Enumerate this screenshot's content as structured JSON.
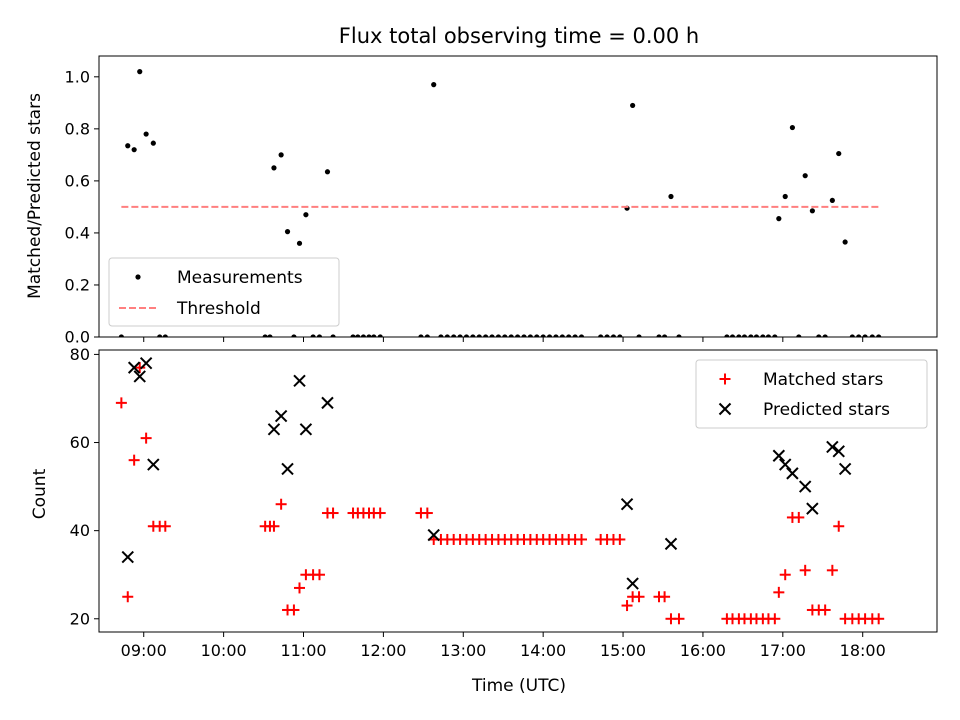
{
  "chart_data": [
    {
      "type": "scatter",
      "title": "Flux total observing time = 0.00 h",
      "ylabel": "Matched/Predicted stars",
      "xlabel": "",
      "xlim": [
        8.44,
        18.93
      ],
      "ylim": [
        0.0,
        1.08
      ],
      "yticks": [
        0.0,
        0.2,
        0.4,
        0.6,
        0.8,
        1.0
      ],
      "ytick_labels": [
        "0.0",
        "0.2",
        "0.4",
        "0.6",
        "0.8",
        "1.0"
      ],
      "legend": "lower-left",
      "series": [
        {
          "name": "Measurements",
          "style": "dot",
          "color": "#000000",
          "points": [
            [
              8.72,
              0.0
            ],
            [
              8.8,
              0.735
            ],
            [
              8.88,
              0.72
            ],
            [
              8.95,
              1.02
            ],
            [
              9.03,
              0.78
            ],
            [
              9.12,
              0.745
            ],
            [
              9.2,
              0.0
            ],
            [
              9.27,
              0.0
            ],
            [
              10.52,
              0.0
            ],
            [
              10.58,
              0.0
            ],
            [
              10.63,
              0.65
            ],
            [
              10.72,
              0.7
            ],
            [
              10.8,
              0.405
            ],
            [
              10.88,
              0.0
            ],
            [
              10.95,
              0.36
            ],
            [
              11.03,
              0.47
            ],
            [
              11.12,
              0.0
            ],
            [
              11.2,
              0.0
            ],
            [
              11.3,
              0.635
            ],
            [
              11.37,
              0.0
            ],
            [
              11.62,
              0.0
            ],
            [
              11.68,
              0.0
            ],
            [
              11.75,
              0.0
            ],
            [
              11.82,
              0.0
            ],
            [
              11.88,
              0.0
            ],
            [
              11.96,
              0.0
            ],
            [
              12.47,
              0.0
            ],
            [
              12.55,
              0.0
            ],
            [
              12.63,
              0.97
            ],
            [
              12.72,
              0.0
            ],
            [
              12.8,
              0.0
            ],
            [
              12.88,
              0.0
            ],
            [
              12.96,
              0.0
            ],
            [
              13.04,
              0.0
            ],
            [
              13.12,
              0.0
            ],
            [
              13.2,
              0.0
            ],
            [
              13.28,
              0.0
            ],
            [
              13.36,
              0.0
            ],
            [
              13.44,
              0.0
            ],
            [
              13.52,
              0.0
            ],
            [
              13.6,
              0.0
            ],
            [
              13.68,
              0.0
            ],
            [
              13.76,
              0.0
            ],
            [
              13.84,
              0.0
            ],
            [
              13.92,
              0.0
            ],
            [
              14.0,
              0.0
            ],
            [
              14.08,
              0.0
            ],
            [
              14.16,
              0.0
            ],
            [
              14.24,
              0.0
            ],
            [
              14.32,
              0.0
            ],
            [
              14.4,
              0.0
            ],
            [
              14.48,
              0.0
            ],
            [
              14.72,
              0.0
            ],
            [
              14.8,
              0.0
            ],
            [
              14.88,
              0.0
            ],
            [
              14.96,
              0.0
            ],
            [
              15.05,
              0.495
            ],
            [
              15.12,
              0.89
            ],
            [
              15.2,
              0.0
            ],
            [
              15.45,
              0.0
            ],
            [
              15.52,
              0.0
            ],
            [
              15.6,
              0.54
            ],
            [
              15.7,
              0.0
            ],
            [
              16.3,
              0.0
            ],
            [
              16.37,
              0.0
            ],
            [
              16.45,
              0.0
            ],
            [
              16.52,
              0.0
            ],
            [
              16.6,
              0.0
            ],
            [
              16.67,
              0.0
            ],
            [
              16.75,
              0.0
            ],
            [
              16.82,
              0.0
            ],
            [
              16.9,
              0.0
            ],
            [
              16.95,
              0.455
            ],
            [
              17.03,
              0.54
            ],
            [
              17.12,
              0.805
            ],
            [
              17.2,
              0.0
            ],
            [
              17.28,
              0.62
            ],
            [
              17.37,
              0.485
            ],
            [
              17.45,
              0.0
            ],
            [
              17.53,
              0.0
            ],
            [
              17.62,
              0.525
            ],
            [
              17.7,
              0.705
            ],
            [
              17.78,
              0.365
            ],
            [
              17.87,
              0.0
            ],
            [
              17.95,
              0.0
            ],
            [
              18.03,
              0.0
            ],
            [
              18.12,
              0.0
            ],
            [
              18.2,
              0.0
            ]
          ]
        },
        {
          "name": "Threshold",
          "style": "dashed-line",
          "color": "#ff7f7f",
          "points": [
            [
              8.72,
              0.5
            ],
            [
              18.2,
              0.5
            ]
          ]
        }
      ]
    },
    {
      "type": "scatter",
      "title": "",
      "ylabel": "Count",
      "xlabel": "Time (UTC)",
      "xlim": [
        8.44,
        18.93
      ],
      "ylim": [
        17,
        81
      ],
      "yticks": [
        20,
        40,
        60,
        80
      ],
      "ytick_labels": [
        "20",
        "40",
        "60",
        "80"
      ],
      "xticks": [
        9,
        10,
        11,
        12,
        13,
        14,
        15,
        16,
        17,
        18
      ],
      "xtick_labels": [
        "09:00",
        "10:00",
        "11:00",
        "12:00",
        "13:00",
        "14:00",
        "15:00",
        "16:00",
        "17:00",
        "18:00"
      ],
      "legend": "top-right",
      "series": [
        {
          "name": "Matched stars",
          "style": "plus",
          "color": "#ff0000",
          "points": [
            [
              8.72,
              69
            ],
            [
              8.8,
              25
            ],
            [
              8.88,
              56
            ],
            [
              8.95,
              77
            ],
            [
              9.03,
              61
            ],
            [
              9.12,
              41
            ],
            [
              9.2,
              41
            ],
            [
              9.27,
              41
            ],
            [
              10.52,
              41
            ],
            [
              10.58,
              41
            ],
            [
              10.63,
              41
            ],
            [
              10.72,
              46
            ],
            [
              10.8,
              22
            ],
            [
              10.88,
              22
            ],
            [
              10.95,
              27
            ],
            [
              11.03,
              30
            ],
            [
              11.12,
              30
            ],
            [
              11.2,
              30
            ],
            [
              11.3,
              44
            ],
            [
              11.37,
              44
            ],
            [
              11.62,
              44
            ],
            [
              11.68,
              44
            ],
            [
              11.75,
              44
            ],
            [
              11.82,
              44
            ],
            [
              11.88,
              44
            ],
            [
              11.96,
              44
            ],
            [
              12.47,
              44
            ],
            [
              12.55,
              44
            ],
            [
              12.63,
              38
            ],
            [
              12.72,
              38
            ],
            [
              12.8,
              38
            ],
            [
              12.88,
              38
            ],
            [
              12.96,
              38
            ],
            [
              13.04,
              38
            ],
            [
              13.12,
              38
            ],
            [
              13.2,
              38
            ],
            [
              13.28,
              38
            ],
            [
              13.36,
              38
            ],
            [
              13.44,
              38
            ],
            [
              13.52,
              38
            ],
            [
              13.6,
              38
            ],
            [
              13.68,
              38
            ],
            [
              13.76,
              38
            ],
            [
              13.84,
              38
            ],
            [
              13.92,
              38
            ],
            [
              14.0,
              38
            ],
            [
              14.08,
              38
            ],
            [
              14.16,
              38
            ],
            [
              14.24,
              38
            ],
            [
              14.32,
              38
            ],
            [
              14.4,
              38
            ],
            [
              14.48,
              38
            ],
            [
              14.72,
              38
            ],
            [
              14.8,
              38
            ],
            [
              14.88,
              38
            ],
            [
              14.96,
              38
            ],
            [
              15.05,
              23
            ],
            [
              15.12,
              25
            ],
            [
              15.2,
              25
            ],
            [
              15.45,
              25
            ],
            [
              15.52,
              25
            ],
            [
              15.6,
              20
            ],
            [
              15.7,
              20
            ],
            [
              16.3,
              20
            ],
            [
              16.37,
              20
            ],
            [
              16.45,
              20
            ],
            [
              16.52,
              20
            ],
            [
              16.6,
              20
            ],
            [
              16.67,
              20
            ],
            [
              16.75,
              20
            ],
            [
              16.82,
              20
            ],
            [
              16.9,
              20
            ],
            [
              16.95,
              26
            ],
            [
              17.03,
              30
            ],
            [
              17.12,
              43
            ],
            [
              17.2,
              43
            ],
            [
              17.28,
              31
            ],
            [
              17.37,
              22
            ],
            [
              17.45,
              22
            ],
            [
              17.53,
              22
            ],
            [
              17.62,
              31
            ],
            [
              17.7,
              41
            ],
            [
              17.78,
              20
            ],
            [
              17.87,
              20
            ],
            [
              17.95,
              20
            ],
            [
              18.03,
              20
            ],
            [
              18.12,
              20
            ],
            [
              18.2,
              20
            ]
          ]
        },
        {
          "name": "Predicted stars",
          "style": "x",
          "color": "#000000",
          "points": [
            [
              8.8,
              34
            ],
            [
              8.88,
              77
            ],
            [
              8.95,
              75
            ],
            [
              9.03,
              78
            ],
            [
              9.12,
              55
            ],
            [
              10.63,
              63
            ],
            [
              10.72,
              66
            ],
            [
              10.8,
              54
            ],
            [
              10.95,
              74
            ],
            [
              11.03,
              63
            ],
            [
              11.3,
              69
            ],
            [
              12.63,
              39
            ],
            [
              15.05,
              46
            ],
            [
              15.12,
              28
            ],
            [
              15.6,
              37
            ],
            [
              16.95,
              57
            ],
            [
              17.03,
              55
            ],
            [
              17.12,
              53
            ],
            [
              17.28,
              50
            ],
            [
              17.37,
              45
            ],
            [
              17.62,
              59
            ],
            [
              17.7,
              58
            ],
            [
              17.78,
              54
            ]
          ]
        }
      ]
    }
  ]
}
